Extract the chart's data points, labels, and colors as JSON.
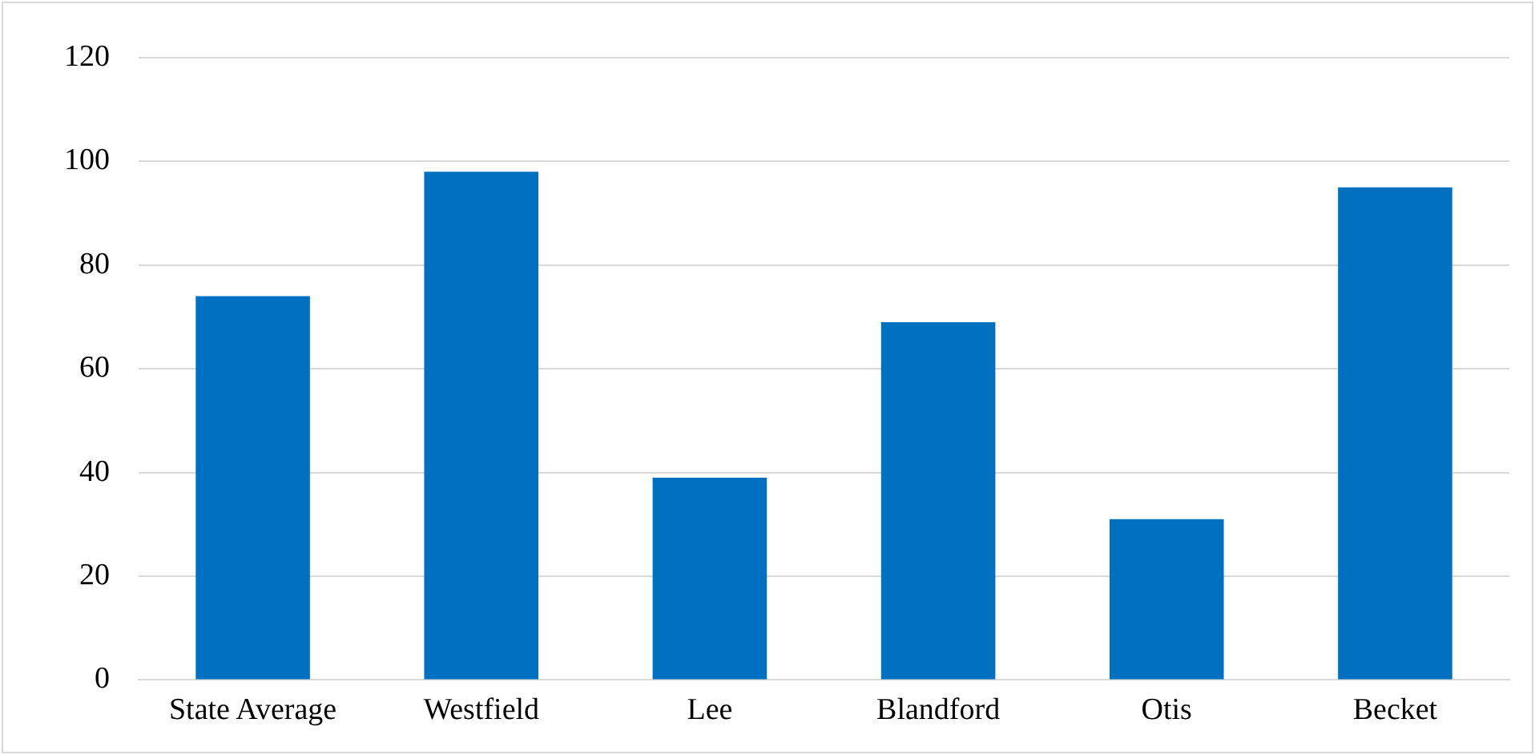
{
  "chart_data": {
    "type": "bar",
    "categories": [
      "State Average",
      "Westfield",
      "Lee",
      "Blandford",
      "Otis",
      "Becket"
    ],
    "values": [
      74,
      98,
      39,
      69,
      31,
      95
    ],
    "color": "#0070c0",
    "ylim": [
      0,
      120
    ],
    "yticks": [
      0,
      20,
      40,
      60,
      80,
      100,
      120
    ],
    "grid": "y",
    "legend": false
  }
}
